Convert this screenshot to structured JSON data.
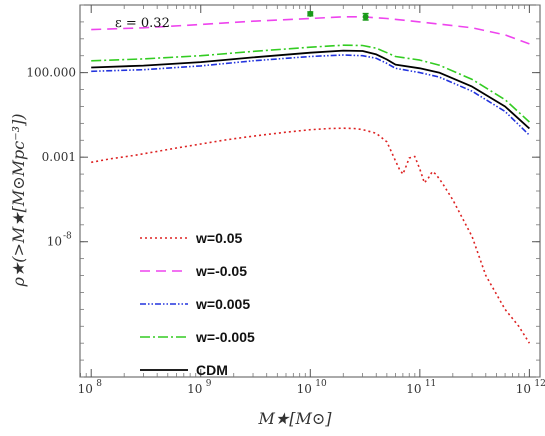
{
  "chart_data": {
    "type": "line",
    "title": "",
    "annotation": "ε = 0.32",
    "xlabel": "M★[M⊙]",
    "ylabel": "ρ★(>M★[M⊙Mpc⁻³])",
    "x_scale": "log",
    "y_scale": "log",
    "xlim": [
      79000000.0,
      1250000000000.0
    ],
    "ylim": [
      1e-16,
      1000000.0
    ],
    "x_ticks": [
      {
        "value": 100000000.0,
        "base": "10",
        "exp": "8"
      },
      {
        "value": 1000000000.0,
        "base": "10",
        "exp": "9"
      },
      {
        "value": 10000000000.0,
        "base": "10",
        "exp": "10"
      },
      {
        "value": 100000000000.0,
        "base": "10",
        "exp": "11"
      },
      {
        "value": 1000000000000.0,
        "base": "10",
        "exp": "12"
      }
    ],
    "y_ticks": [
      {
        "value": 100,
        "label": "100.000",
        "base": "",
        "exp": ""
      },
      {
        "value": 0.001,
        "label": "0.001",
        "base": "",
        "exp": ""
      },
      {
        "value": 1e-08,
        "label": "",
        "base": "10",
        "exp": "-8"
      }
    ],
    "legend_position": "lower-left",
    "grid": false,
    "series": [
      {
        "name": "w=0.05",
        "color": "#dd2222",
        "dash": "2,3",
        "width": 1.6,
        "x": [
          100000000.0,
          150000000.0,
          250000000.0,
          400000000.0,
          600000000.0,
          1000000000.0,
          1600000000.0,
          2500000000.0,
          4000000000.0,
          6000000000.0,
          10000000000.0,
          15000000000.0,
          20000000000.0,
          25000000000.0,
          30000000000.0,
          40000000000.0,
          50000000000.0,
          60000000000.0,
          65000000000.0,
          70000000000.0,
          75000000000.0,
          80000000000.0,
          90000000000.0,
          100000000000.0,
          110000000000.0,
          120000000000.0,
          130000000000.0,
          140000000000.0,
          160000000000.0,
          200000000000.0,
          300000000000.0,
          400000000000.0,
          600000000000.0,
          800000000000.0,
          1000000000000.0
        ],
        "y": [
          0.0005,
          0.0008,
          0.0013,
          0.0022,
          0.0035,
          0.006,
          0.01,
          0.015,
          0.022,
          0.03,
          0.042,
          0.05,
          0.052,
          0.05,
          0.043,
          0.026,
          0.008,
          0.0006,
          0.0002,
          0.0001,
          0.0003,
          0.0009,
          0.0011,
          0.0002,
          3e-05,
          6e-05,
          0.00014,
          0.0001,
          3e-05,
          3e-06,
          2e-08,
          1e-10,
          1e-12,
          1e-13,
          1e-14
        ]
      },
      {
        "name": "w=-0.05",
        "color": "#ee44ee",
        "dash": "10,6",
        "width": 1.6,
        "x": [
          100000000.0,
          300000000.0,
          1000000000.0,
          3000000000.0,
          10000000000.0,
          20000000000.0,
          30000000000.0,
          50000000000.0,
          100000000000.0,
          300000000000.0,
          600000000000.0,
          1000000000000.0
        ],
        "y": [
          35000.0,
          45000.0,
          70000.0,
          110000.0,
          160000.0,
          200000.0,
          200000.0,
          160000.0,
          100000.0,
          45000.0,
          17000.0,
          5000.0
        ]
      },
      {
        "name": "w=0.005",
        "color": "#2233dd",
        "dash": "6,2,1.5,2,1.5,2",
        "width": 1.6,
        "x": [
          100000000.0,
          300000000.0,
          1000000000.0,
          3000000000.0,
          10000000000.0,
          20000000000.0,
          30000000000.0,
          40000000000.0,
          50000000000.0,
          60000000000.0,
          100000000000.0,
          150000000000.0,
          300000000000.0,
          600000000000.0,
          1000000000000.0
        ],
        "y": [
          120,
          150,
          250,
          500,
          900,
          1100,
          1000,
          700,
          350,
          180,
          100,
          55,
          8,
          0.5,
          0.02
        ]
      },
      {
        "name": "w=-0.005",
        "color": "#33cc22",
        "dash": "10,3,2,3",
        "width": 1.6,
        "x": [
          100000000.0,
          300000000.0,
          1000000000.0,
          3000000000.0,
          10000000000.0,
          20000000000.0,
          30000000000.0,
          40000000000.0,
          50000000000.0,
          60000000000.0,
          100000000000.0,
          150000000000.0,
          300000000000.0,
          600000000000.0,
          1000000000000.0
        ],
        "y": [
          500,
          650,
          1000,
          1800,
          3200,
          4200,
          4000,
          2800,
          1500,
          900,
          550,
          280,
          40,
          2.5,
          0.12
        ]
      },
      {
        "name": "CDM",
        "color": "#000000",
        "dash": "",
        "width": 1.8,
        "x": [
          100000000.0,
          300000000.0,
          1000000000.0,
          3000000000.0,
          10000000000.0,
          20000000000.0,
          30000000000.0,
          40000000000.0,
          50000000000.0,
          60000000000.0,
          100000000000.0,
          150000000000.0,
          300000000000.0,
          600000000000.0,
          1000000000000.0
        ],
        "y": [
          200,
          260,
          420,
          800,
          1500,
          2000,
          1900,
          1200,
          600,
          300,
          180,
          100,
          15,
          1,
          0.05
        ]
      }
    ],
    "observations": {
      "color": "#1a9a1a",
      "x": [
        10000000000.0,
        32000000000.0
      ],
      "y": [
        300000.0,
        200000.0
      ],
      "err_low": [
        230000.0,
        130000.0
      ],
      "err_high": [
        390000.0,
        310000.0
      ]
    }
  }
}
